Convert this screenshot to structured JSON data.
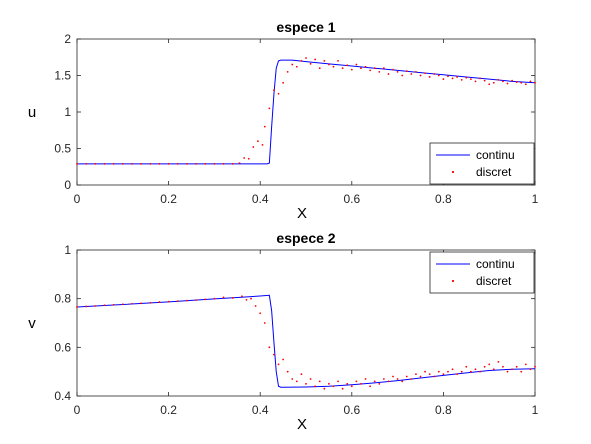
{
  "chart_data": [
    {
      "type": "line",
      "title": "espece 1",
      "xlabel": "X",
      "ylabel": "u",
      "xlim": [
        0,
        1
      ],
      "ylim": [
        0,
        2
      ],
      "xticks": [
        "0",
        "0.2",
        "0.4",
        "0.6",
        "0.8",
        "1"
      ],
      "yticks": [
        "0",
        "0.5",
        "1",
        "1.5",
        "2"
      ],
      "legend_position": "bottom-right",
      "series": [
        {
          "name": "continu",
          "style": "line",
          "color": "#0000ff",
          "x": [
            0,
            0.1,
            0.2,
            0.3,
            0.37,
            0.39,
            0.4,
            0.415,
            0.42,
            0.425,
            0.43,
            0.435,
            0.44,
            0.445,
            0.45,
            0.47,
            0.5,
            0.55,
            0.6,
            0.65,
            0.7,
            0.75,
            0.8,
            0.85,
            0.9,
            0.95,
            1.0
          ],
          "y": [
            0.29,
            0.29,
            0.29,
            0.29,
            0.29,
            0.29,
            0.29,
            0.29,
            0.3,
            0.8,
            1.25,
            1.6,
            1.7,
            1.71,
            1.71,
            1.71,
            1.69,
            1.66,
            1.63,
            1.6,
            1.57,
            1.54,
            1.51,
            1.48,
            1.45,
            1.42,
            1.4
          ]
        },
        {
          "name": "discret",
          "style": "points",
          "color": "#ff0000",
          "x": [
            0,
            0.02,
            0.04,
            0.06,
            0.08,
            0.1,
            0.12,
            0.14,
            0.16,
            0.18,
            0.2,
            0.22,
            0.24,
            0.26,
            0.28,
            0.3,
            0.32,
            0.34,
            0.355,
            0.365,
            0.375,
            0.385,
            0.395,
            0.405,
            0.41,
            0.42,
            0.43,
            0.44,
            0.45,
            0.46,
            0.47,
            0.48,
            0.49,
            0.5,
            0.51,
            0.52,
            0.53,
            0.54,
            0.55,
            0.56,
            0.57,
            0.58,
            0.59,
            0.6,
            0.61,
            0.62,
            0.63,
            0.64,
            0.65,
            0.66,
            0.67,
            0.68,
            0.69,
            0.7,
            0.71,
            0.72,
            0.73,
            0.74,
            0.75,
            0.76,
            0.77,
            0.78,
            0.79,
            0.8,
            0.81,
            0.82,
            0.83,
            0.84,
            0.85,
            0.86,
            0.87,
            0.88,
            0.89,
            0.9,
            0.91,
            0.92,
            0.93,
            0.94,
            0.95,
            0.96,
            0.97,
            0.98,
            0.99,
            1.0
          ],
          "y": [
            0.29,
            0.29,
            0.29,
            0.29,
            0.29,
            0.29,
            0.29,
            0.29,
            0.29,
            0.29,
            0.29,
            0.29,
            0.29,
            0.29,
            0.29,
            0.29,
            0.29,
            0.29,
            0.3,
            0.37,
            0.36,
            0.52,
            0.6,
            0.55,
            0.8,
            1.05,
            1.3,
            1.25,
            1.4,
            1.55,
            1.65,
            1.62,
            1.7,
            1.74,
            1.66,
            1.72,
            1.6,
            1.7,
            1.65,
            1.62,
            1.7,
            1.6,
            1.64,
            1.58,
            1.65,
            1.6,
            1.62,
            1.57,
            1.6,
            1.55,
            1.6,
            1.52,
            1.58,
            1.55,
            1.5,
            1.56,
            1.52,
            1.55,
            1.5,
            1.53,
            1.48,
            1.52,
            1.5,
            1.45,
            1.49,
            1.46,
            1.48,
            1.44,
            1.47,
            1.45,
            1.42,
            1.46,
            1.43,
            1.38,
            1.4,
            1.44,
            1.42,
            1.39,
            1.43,
            1.41,
            1.4,
            1.38,
            1.42,
            1.4
          ]
        }
      ]
    },
    {
      "type": "line",
      "title": "espece 2",
      "xlabel": "X",
      "ylabel": "v",
      "xlim": [
        0,
        1
      ],
      "ylim": [
        0.4,
        1
      ],
      "xticks": [
        "0",
        "0.2",
        "0.4",
        "0.6",
        "0.8",
        "1"
      ],
      "yticks": [
        "0.4",
        "0.6",
        "0.8",
        "1"
      ],
      "legend_position": "top-right",
      "series": [
        {
          "name": "continu",
          "style": "line",
          "color": "#0000ff",
          "x": [
            0,
            0.1,
            0.2,
            0.3,
            0.35,
            0.4,
            0.42,
            0.425,
            0.43,
            0.435,
            0.44,
            0.445,
            0.45,
            0.5,
            0.55,
            0.6,
            0.65,
            0.7,
            0.75,
            0.8,
            0.85,
            0.9,
            0.95,
            1.0
          ],
          "y": [
            0.766,
            0.776,
            0.787,
            0.799,
            0.805,
            0.811,
            0.814,
            0.75,
            0.62,
            0.5,
            0.44,
            0.436,
            0.436,
            0.437,
            0.44,
            0.446,
            0.454,
            0.463,
            0.474,
            0.485,
            0.495,
            0.505,
            0.51,
            0.512
          ]
        },
        {
          "name": "discret",
          "style": "points",
          "color": "#ff0000",
          "x": [
            0,
            0.02,
            0.04,
            0.06,
            0.08,
            0.1,
            0.12,
            0.14,
            0.16,
            0.18,
            0.2,
            0.22,
            0.24,
            0.26,
            0.28,
            0.3,
            0.32,
            0.34,
            0.36,
            0.37,
            0.38,
            0.39,
            0.4,
            0.41,
            0.42,
            0.43,
            0.44,
            0.45,
            0.46,
            0.47,
            0.48,
            0.49,
            0.5,
            0.51,
            0.52,
            0.53,
            0.54,
            0.55,
            0.56,
            0.57,
            0.58,
            0.59,
            0.6,
            0.61,
            0.62,
            0.63,
            0.64,
            0.65,
            0.66,
            0.67,
            0.68,
            0.69,
            0.7,
            0.71,
            0.72,
            0.73,
            0.74,
            0.75,
            0.76,
            0.77,
            0.78,
            0.79,
            0.8,
            0.81,
            0.82,
            0.83,
            0.84,
            0.85,
            0.86,
            0.87,
            0.88,
            0.89,
            0.9,
            0.91,
            0.92,
            0.93,
            0.94,
            0.95,
            0.96,
            0.97,
            0.98,
            0.99,
            1.0
          ],
          "y": [
            0.766,
            0.768,
            0.77,
            0.773,
            0.775,
            0.777,
            0.779,
            0.781,
            0.783,
            0.786,
            0.788,
            0.79,
            0.792,
            0.794,
            0.797,
            0.8,
            0.805,
            0.803,
            0.81,
            0.795,
            0.8,
            0.77,
            0.74,
            0.7,
            0.6,
            0.57,
            0.53,
            0.55,
            0.5,
            0.47,
            0.46,
            0.49,
            0.45,
            0.47,
            0.44,
            0.46,
            0.43,
            0.45,
            0.44,
            0.46,
            0.43,
            0.45,
            0.44,
            0.46,
            0.45,
            0.47,
            0.44,
            0.46,
            0.45,
            0.47,
            0.46,
            0.48,
            0.47,
            0.46,
            0.48,
            0.47,
            0.49,
            0.48,
            0.5,
            0.49,
            0.48,
            0.5,
            0.49,
            0.5,
            0.51,
            0.49,
            0.5,
            0.52,
            0.5,
            0.51,
            0.5,
            0.52,
            0.53,
            0.51,
            0.54,
            0.52,
            0.5,
            0.51,
            0.52,
            0.5,
            0.53,
            0.51,
            0.52
          ]
        }
      ]
    }
  ]
}
